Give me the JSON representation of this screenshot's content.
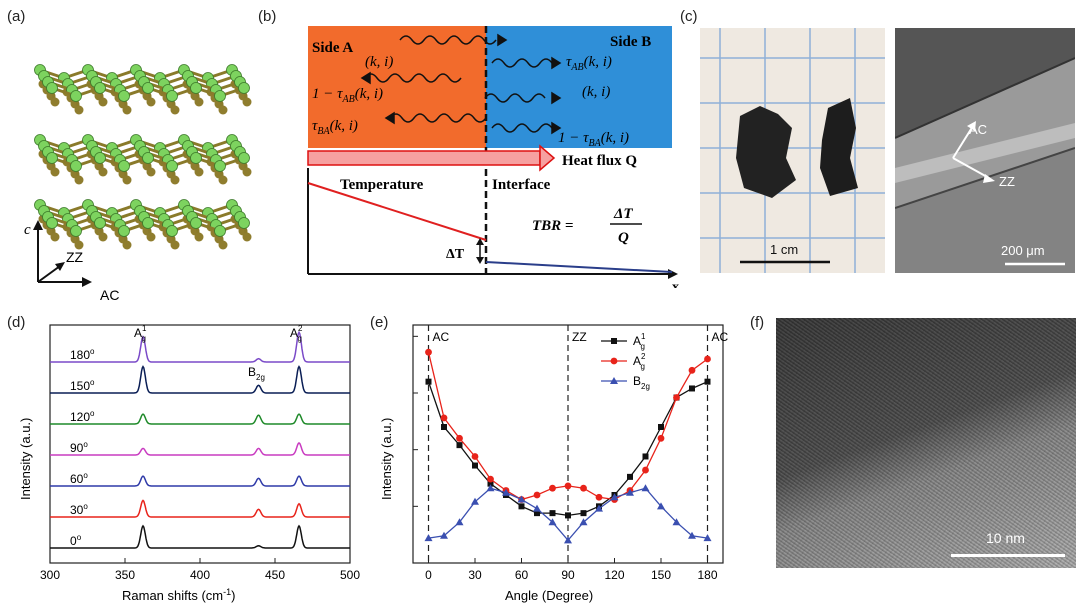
{
  "labels": {
    "a": "(a)",
    "b": "(b)",
    "c": "(c)",
    "d": "(d)",
    "e": "(e)",
    "f": "(f)"
  },
  "panel_a": {
    "axis_c": "c",
    "axis_zz": "ZZ",
    "axis_ac": "AC",
    "atom_color": "#7dd35f",
    "bond_color": "#8a7a2a"
  },
  "panel_b": {
    "side_a": "Side A",
    "side_b": "Side B",
    "ki_a": "(k, i)",
    "one_minus_tau_ab": "1 − τ",
    "tau_ba": "τ",
    "tau_ab": "τ",
    "ki_b": "(k, i)",
    "one_minus_tau_ba": "1 − τ",
    "sub_ab": "AB",
    "sub_ba": "BA",
    "arg": "(k, i)",
    "heat_flux": "Heat flux Q",
    "temperature": "Temperature",
    "interface": "Interface",
    "tbr": "TBR =",
    "tbr_num": "ΔT",
    "tbr_den": "Q",
    "delta_t": "ΔT",
    "x": "x",
    "color_a": "#f26b2c",
    "color_b": "#2f8fd8"
  },
  "panel_c": {
    "scale1": "1 cm",
    "ac": "AC",
    "zz": "ZZ",
    "scale2": "200 μm"
  },
  "panel_d": {
    "xlabel": "Raman shifts (cm",
    "xlabel_sup": "-1",
    "xlabel_end": ")",
    "ylabel": "Intensity (a.u.)",
    "xticks": [
      "300",
      "350",
      "400",
      "450",
      "500"
    ],
    "peak_a1": "A",
    "peak_a1_sup": "1",
    "peak_a1_sub": "g",
    "peak_b2g": "B",
    "peak_b2g_sub": "2g",
    "peak_a2": "A",
    "peak_a2_sup": "2",
    "peak_a2_sub": "g"
  },
  "panel_f": {
    "scale": "10 nm"
  },
  "chart_data": [
    {
      "type": "line",
      "panel": "d",
      "xlabel": "Raman shifts (cm-1)",
      "ylabel": "Intensity (a.u.)",
      "xlim": [
        300,
        500
      ],
      "peaks": [
        362,
        439,
        466
      ],
      "series": [
        {
          "name": "0°",
          "color": "#111111",
          "heights": [
            1.0,
            0.1,
            1.0
          ]
        },
        {
          "name": "30°",
          "color": "#e8231a",
          "heights": [
            0.75,
            0.35,
            0.6
          ]
        },
        {
          "name": "60°",
          "color": "#2f3aa8",
          "heights": [
            0.45,
            0.35,
            0.45
          ]
        },
        {
          "name": "90°",
          "color": "#c93cc1",
          "heights": [
            0.3,
            0.3,
            0.55
          ]
        },
        {
          "name": "120°",
          "color": "#1f8a2a",
          "heights": [
            0.45,
            0.4,
            0.45
          ]
        },
        {
          "name": "150°",
          "color": "#0a1e55",
          "heights": [
            1.2,
            0.35,
            1.2
          ]
        },
        {
          "name": "180°",
          "color": "#7a4ac8",
          "heights": [
            1.15,
            0.15,
            1.35
          ]
        }
      ]
    },
    {
      "type": "line",
      "panel": "e",
      "xlabel": "Angle (Degree)",
      "ylabel": "Intensity (a.u.)",
      "xlim": [
        -10,
        190
      ],
      "ylim": [
        0,
        1.05
      ],
      "xticks": [
        0,
        30,
        60,
        90,
        120,
        150,
        180
      ],
      "annotations": [
        "AC",
        "ZZ",
        "AC"
      ],
      "x": [
        0,
        10,
        20,
        30,
        40,
        50,
        60,
        70,
        80,
        90,
        100,
        110,
        120,
        130,
        140,
        150,
        160,
        170,
        180
      ],
      "series": [
        {
          "name": "A",
          "sup": "1",
          "sub": "g",
          "color": "#111111",
          "marker": "square",
          "values": [
            0.8,
            0.6,
            0.52,
            0.43,
            0.35,
            0.3,
            0.25,
            0.22,
            0.22,
            0.21,
            0.22,
            0.25,
            0.3,
            0.38,
            0.47,
            0.6,
            0.73,
            0.77,
            0.8
          ]
        },
        {
          "name": "A",
          "sup": "2",
          "sub": "g",
          "color": "#e8231a",
          "marker": "circle",
          "values": [
            0.93,
            0.64,
            0.55,
            0.47,
            0.37,
            0.32,
            0.28,
            0.3,
            0.33,
            0.34,
            0.33,
            0.29,
            0.28,
            0.32,
            0.41,
            0.55,
            0.73,
            0.85,
            0.9
          ]
        },
        {
          "name": "B",
          "sub": "2g",
          "color": "#3a4fb0",
          "marker": "triangle",
          "values": [
            0.11,
            0.12,
            0.18,
            0.27,
            0.33,
            0.31,
            0.28,
            0.24,
            0.18,
            0.1,
            0.18,
            0.24,
            0.29,
            0.31,
            0.33,
            0.25,
            0.18,
            0.12,
            0.11
          ]
        }
      ]
    }
  ]
}
